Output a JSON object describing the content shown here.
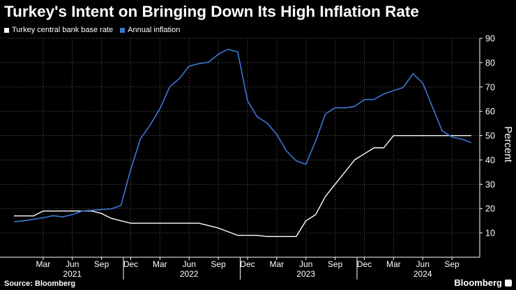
{
  "title": "Turkey's Intent on Bringing Down Its High Inflation Rate",
  "source": "Source: Bloomberg",
  "brand": "Bloomberg",
  "colors": {
    "policy_rate": "#ffffff",
    "inflation": "#3a78d6",
    "grid": "#5a5a5a",
    "background": "#000000"
  },
  "chart_data": {
    "type": "line",
    "ylabel": "Percent",
    "ylim": [
      0,
      90
    ],
    "yticks": [
      10,
      20,
      30,
      40,
      50,
      60,
      70,
      80,
      90
    ],
    "y_axis_side": "right",
    "grid": true,
    "legend_position": "top-left",
    "x_range": [
      "2020-12",
      "2024-11"
    ],
    "x_tick_labels": [
      {
        "date": "2021-03",
        "label": "Mar"
      },
      {
        "date": "2021-06",
        "label": "Jun"
      },
      {
        "date": "2021-09",
        "label": "Sep"
      },
      {
        "date": "2021-12",
        "label": "Dec"
      },
      {
        "date": "2022-03",
        "label": "Mar"
      },
      {
        "date": "2022-06",
        "label": "Jun"
      },
      {
        "date": "2022-09",
        "label": "Sep"
      },
      {
        "date": "2022-12",
        "label": "Dec"
      },
      {
        "date": "2023-03",
        "label": "Mar"
      },
      {
        "date": "2023-06",
        "label": "Jun"
      },
      {
        "date": "2023-09",
        "label": "Sep"
      },
      {
        "date": "2023-12",
        "label": "Dec"
      },
      {
        "date": "2024-03",
        "label": "Mar"
      },
      {
        "date": "2024-06",
        "label": "Jun"
      },
      {
        "date": "2024-09",
        "label": "Sep"
      }
    ],
    "year_labels": [
      {
        "label": "2021",
        "center": "2021-06"
      },
      {
        "label": "2022",
        "center": "2022-06"
      },
      {
        "label": "2023",
        "center": "2023-06"
      },
      {
        "label": "2024",
        "center": "2024-06"
      }
    ],
    "year_separators": [
      "2021-12",
      "2022-12",
      "2023-12"
    ],
    "series": [
      {
        "name": "Turkey central bank base rate",
        "points": [
          [
            "2020-12",
            17
          ],
          [
            "2021-01",
            17
          ],
          [
            "2021-02",
            17
          ],
          [
            "2021-03",
            19
          ],
          [
            "2021-04",
            19
          ],
          [
            "2021-05",
            19
          ],
          [
            "2021-06",
            19
          ],
          [
            "2021-07",
            19
          ],
          [
            "2021-08",
            19
          ],
          [
            "2021-09",
            18
          ],
          [
            "2021-10",
            16
          ],
          [
            "2021-11",
            15
          ],
          [
            "2021-12",
            14
          ],
          [
            "2022-01",
            14
          ],
          [
            "2022-02",
            14
          ],
          [
            "2022-03",
            14
          ],
          [
            "2022-04",
            14
          ],
          [
            "2022-05",
            14
          ],
          [
            "2022-06",
            14
          ],
          [
            "2022-07",
            14
          ],
          [
            "2022-08",
            13
          ],
          [
            "2022-09",
            12
          ],
          [
            "2022-10",
            10.5
          ],
          [
            "2022-11",
            9
          ],
          [
            "2022-12",
            9
          ],
          [
            "2023-01",
            9
          ],
          [
            "2023-02",
            8.5
          ],
          [
            "2023-03",
            8.5
          ],
          [
            "2023-04",
            8.5
          ],
          [
            "2023-05",
            8.5
          ],
          [
            "2023-06",
            15
          ],
          [
            "2023-07",
            17.5
          ],
          [
            "2023-08",
            25
          ],
          [
            "2023-09",
            30
          ],
          [
            "2023-10",
            35
          ],
          [
            "2023-11",
            40
          ],
          [
            "2023-12",
            42.5
          ],
          [
            "2024-01",
            45
          ],
          [
            "2024-02",
            45
          ],
          [
            "2024-03",
            50
          ],
          [
            "2024-04",
            50
          ],
          [
            "2024-05",
            50
          ],
          [
            "2024-06",
            50
          ],
          [
            "2024-07",
            50
          ],
          [
            "2024-08",
            50
          ],
          [
            "2024-09",
            50
          ],
          [
            "2024-10",
            50
          ],
          [
            "2024-11",
            50
          ]
        ]
      },
      {
        "name": "Annual inflation",
        "points": [
          [
            "2020-12",
            14.6
          ],
          [
            "2021-01",
            15.0
          ],
          [
            "2021-02",
            15.6
          ],
          [
            "2021-03",
            16.2
          ],
          [
            "2021-04",
            17.1
          ],
          [
            "2021-05",
            16.6
          ],
          [
            "2021-06",
            17.5
          ],
          [
            "2021-07",
            19.0
          ],
          [
            "2021-08",
            19.3
          ],
          [
            "2021-09",
            19.6
          ],
          [
            "2021-10",
            19.9
          ],
          [
            "2021-11",
            21.3
          ],
          [
            "2021-12",
            36.1
          ],
          [
            "2022-01",
            48.7
          ],
          [
            "2022-02",
            54.4
          ],
          [
            "2022-03",
            61.1
          ],
          [
            "2022-04",
            70.0
          ],
          [
            "2022-05",
            73.5
          ],
          [
            "2022-06",
            78.6
          ],
          [
            "2022-07",
            79.6
          ],
          [
            "2022-08",
            80.2
          ],
          [
            "2022-09",
            83.5
          ],
          [
            "2022-10",
            85.5
          ],
          [
            "2022-11",
            84.4
          ],
          [
            "2022-12",
            64.3
          ],
          [
            "2023-01",
            57.7
          ],
          [
            "2023-02",
            55.2
          ],
          [
            "2023-03",
            50.5
          ],
          [
            "2023-04",
            43.7
          ],
          [
            "2023-05",
            39.6
          ],
          [
            "2023-06",
            38.2
          ],
          [
            "2023-07",
            47.8
          ],
          [
            "2023-08",
            58.9
          ],
          [
            "2023-09",
            61.5
          ],
          [
            "2023-10",
            61.4
          ],
          [
            "2023-11",
            62.0
          ],
          [
            "2023-12",
            64.8
          ],
          [
            "2024-01",
            64.9
          ],
          [
            "2024-02",
            67.1
          ],
          [
            "2024-03",
            68.5
          ],
          [
            "2024-04",
            69.8
          ],
          [
            "2024-05",
            75.5
          ],
          [
            "2024-06",
            71.6
          ],
          [
            "2024-07",
            61.8
          ],
          [
            "2024-08",
            52.0
          ],
          [
            "2024-09",
            49.4
          ],
          [
            "2024-10",
            48.6
          ],
          [
            "2024-11",
            47.1
          ]
        ]
      }
    ]
  }
}
